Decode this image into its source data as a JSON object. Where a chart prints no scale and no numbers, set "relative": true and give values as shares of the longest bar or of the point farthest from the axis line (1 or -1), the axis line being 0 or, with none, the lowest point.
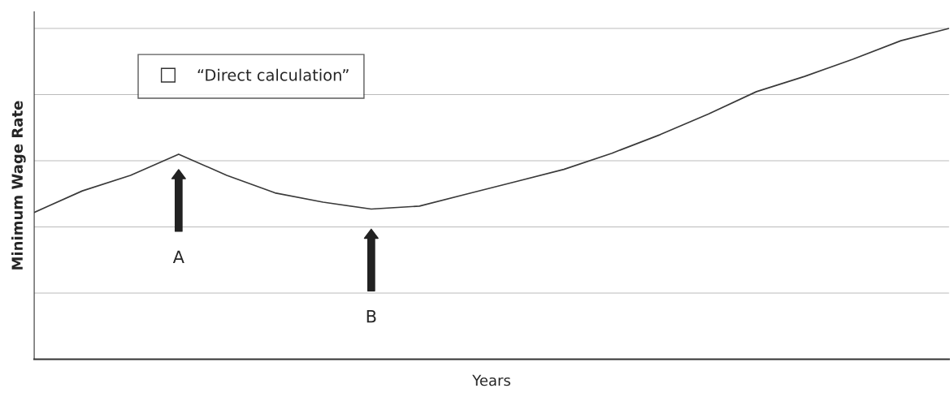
{
  "chart_data": {
    "type": "line",
    "relative": true,
    "xlabel": "Years",
    "ylabel": "Minimum Wage Rate",
    "categories": [
      null,
      null,
      null,
      null,
      null,
      null,
      null,
      null,
      null,
      null,
      null,
      null,
      null,
      null,
      null,
      null,
      null,
      null,
      null,
      null
    ],
    "series": [
      {
        "name": "“Direct calculation”",
        "color": "#3a3a3a",
        "values": [
          0.444,
          0.509,
          0.556,
          0.62,
          0.556,
          0.503,
          0.475,
          0.454,
          0.463,
          0.5,
          0.537,
          0.574,
          0.623,
          0.679,
          0.741,
          0.809,
          0.855,
          0.907,
          0.963,
          1.0
        ]
      }
    ],
    "annotations": [
      "A",
      "B"
    ],
    "grid": "y",
    "legend": "top left",
    "marker": "none",
    "line_style": "solid"
  }
}
